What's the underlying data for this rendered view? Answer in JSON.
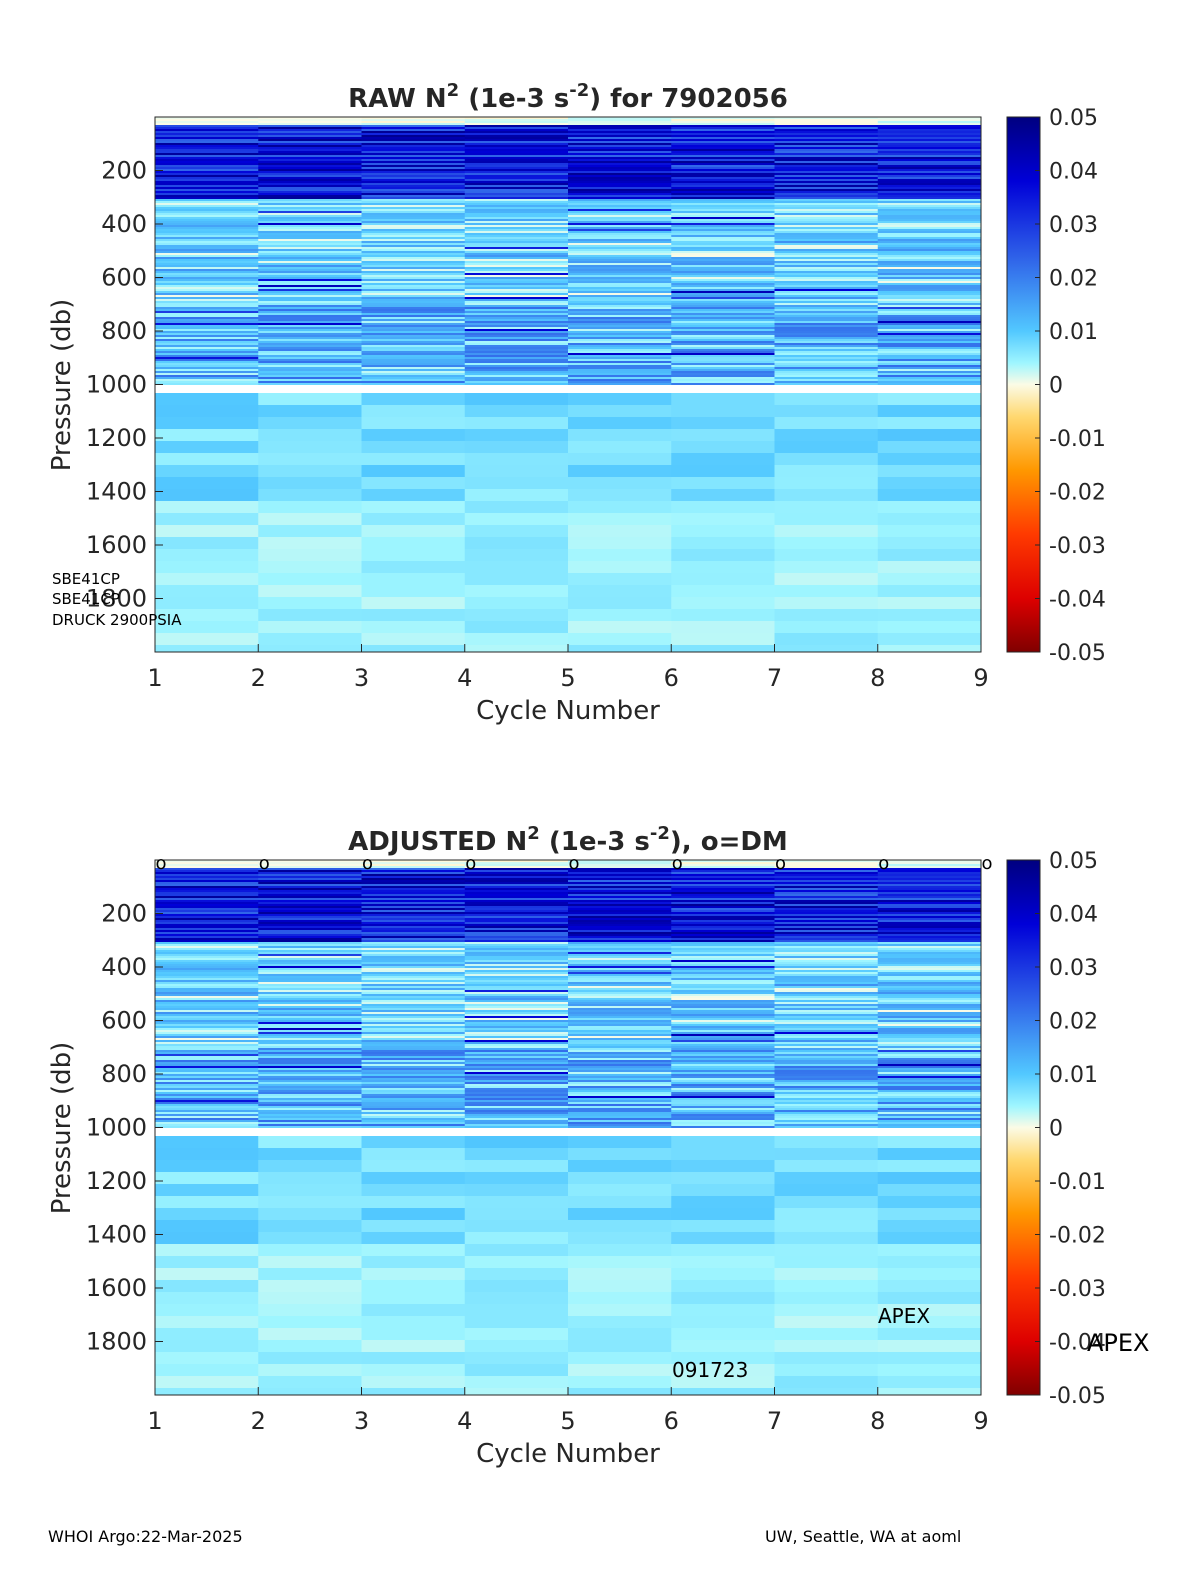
{
  "chart_data": [
    {
      "type": "heatmap",
      "title_main": "RAW N",
      "title_sup1": "2",
      "title_mid": " (1e-3 s",
      "title_sup2": "-2",
      "title_end": ") for 7902056",
      "xlabel": "Cycle Number",
      "ylabel": "Pressure (db)",
      "x_ticks": [
        "1",
        "2",
        "3",
        "4",
        "5",
        "6",
        "7",
        "8",
        "9"
      ],
      "y_ticks": [
        "200",
        "400",
        "600",
        "800",
        "1000",
        "1200",
        "1400",
        "1600",
        "1800"
      ],
      "xlim": [
        1,
        9
      ],
      "ylim": [
        0,
        2000
      ],
      "y_reversed": true,
      "colorbar_ticks": [
        "0.05",
        "0.04",
        "0.03",
        "0.02",
        "0.01",
        "0",
        "-0.01",
        "-0.02",
        "-0.03",
        "-0.04",
        "-0.05"
      ],
      "clim": [
        -0.05,
        0.05
      ],
      "colormap": "blue-cyan-white-yellow-red",
      "annotations": [
        "SBE41CP",
        "SBE41CP",
        "DRUCK 2900PSIA"
      ],
      "dm_markers": []
    },
    {
      "type": "heatmap",
      "title_main": "ADJUSTED N",
      "title_sup1": "2",
      "title_mid": " (1e-3 s",
      "title_sup2": "-2",
      "title_end": "), o=DM",
      "xlabel": "Cycle Number",
      "ylabel": "Pressure (db)",
      "x_ticks": [
        "1",
        "2",
        "3",
        "4",
        "5",
        "6",
        "7",
        "8",
        "9"
      ],
      "y_ticks": [
        "200",
        "400",
        "600",
        "800",
        "1000",
        "1200",
        "1400",
        "1600",
        "1800"
      ],
      "xlim": [
        1,
        9
      ],
      "ylim": [
        0,
        2000
      ],
      "y_reversed": true,
      "colorbar_ticks": [
        "0.05",
        "0.04",
        "0.03",
        "0.02",
        "0.01",
        "0",
        "-0.01",
        "-0.02",
        "-0.03",
        "-0.04",
        "-0.05"
      ],
      "clim": [
        -0.05,
        0.05
      ],
      "colormap": "blue-cyan-white-yellow-red",
      "annotations": [
        "APEX",
        "091723",
        "APEX"
      ],
      "dm_markers": [
        "o",
        "o",
        "o",
        "o",
        "o",
        "o",
        "o",
        "o",
        "o"
      ]
    }
  ],
  "footer": {
    "left": "WHOI Argo:22-Mar-2025",
    "right": "UW, Seattle, WA at aoml"
  }
}
